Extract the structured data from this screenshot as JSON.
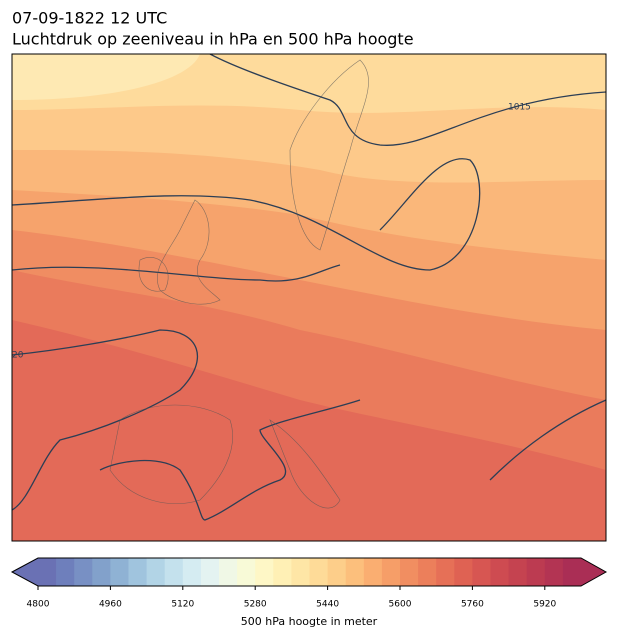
{
  "title": "07-09-1822 12 UTC",
  "subtitle": "Luchtdruk op zeeniveau in hPa en 500 hPa hoogte",
  "isobar_labels": [
    "1015",
    "20"
  ],
  "colorbar": {
    "label": "500 hPa hoogte in meter",
    "lim": [
      4800,
      6000
    ],
    "ticks": [
      4800,
      4960,
      5120,
      5280,
      5440,
      5600,
      5760,
      5920
    ],
    "colors": [
      "#6a71b4",
      "#6e7fbc",
      "#7890c4",
      "#82a1cb",
      "#8fb2d4",
      "#a0c4de",
      "#b2d4e6",
      "#c4e1ed",
      "#d5ecf2",
      "#e4f3f1",
      "#f0f8e6",
      "#f8fad7",
      "#fef7c6",
      "#fff0b5",
      "#fee6a6",
      "#fedb98",
      "#fdce8a",
      "#fcbf7c",
      "#faae71",
      "#f69e68",
      "#f18e61",
      "#ec7f5b",
      "#e67057",
      "#df6253",
      "#d75652",
      "#ce4b51",
      "#c54350",
      "#bc3b51",
      "#b33453",
      "#aa2e55"
    ]
  }
}
